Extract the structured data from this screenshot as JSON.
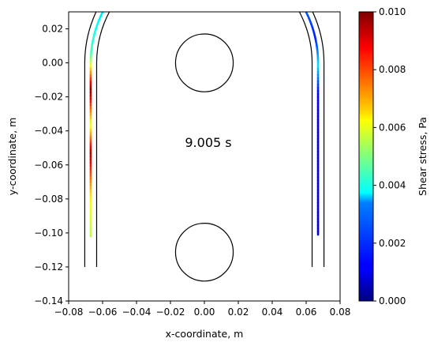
{
  "chart_data": {
    "type": "line",
    "xlabel": "x-coordinate, m",
    "ylabel": "y-coordinate, m",
    "xlim": [
      -0.08,
      0.08
    ],
    "ylim": [
      -0.14,
      0.03
    ],
    "x_ticks": [
      "−0.08",
      "−0.06",
      "−0.04",
      "−0.02",
      "0.00",
      "0.02",
      "0.04",
      "0.06",
      "0.08"
    ],
    "y_ticks": [
      "0.02",
      "0.00",
      "−0.02",
      "−0.04",
      "−0.06",
      "−0.08",
      "−0.10",
      "−0.12",
      "−0.14"
    ],
    "annotation": "9.005 s",
    "grid": false,
    "colorbar": {
      "label": "Shear stress, Pa",
      "range": [
        0.0,
        0.01
      ],
      "ticks": [
        "0.000",
        "0.002",
        "0.004",
        "0.006",
        "0.008",
        "0.010"
      ],
      "colormap": "jet"
    },
    "channel": {
      "outer_radius": 0.0705,
      "inner_radius": 0.0635,
      "straight_bottom_y": -0.12
    },
    "circles": [
      {
        "cx": 0.0,
        "cy": 0.0,
        "r": 0.017
      },
      {
        "cx": 0.0,
        "cy": -0.1113,
        "r": 0.017
      }
    ],
    "centerline": {
      "radius": 0.067,
      "left_end_y": -0.102,
      "right_end_y": -0.101,
      "stress_profile": [
        {
          "s": 0.0,
          "value": 0.0055
        },
        {
          "s": 0.06,
          "value": 0.0065
        },
        {
          "s": 0.12,
          "value": 0.0095
        },
        {
          "s": 0.16,
          "value": 0.006
        },
        {
          "s": 0.21,
          "value": 0.0099
        },
        {
          "s": 0.26,
          "value": 0.0045
        },
        {
          "s": 0.32,
          "value": 0.0035
        },
        {
          "s": 0.38,
          "value": 0.0042
        },
        {
          "s": 0.44,
          "value": 0.0055
        },
        {
          "s": 0.5,
          "value": 0.0045
        },
        {
          "s": 0.53,
          "value": 0.0075
        },
        {
          "s": 0.57,
          "value": 0.0082
        },
        {
          "s": 0.6,
          "value": 0.0093
        },
        {
          "s": 0.64,
          "value": 0.0035
        },
        {
          "s": 0.68,
          "value": 0.0022
        },
        {
          "s": 0.72,
          "value": 0.0015
        },
        {
          "s": 0.76,
          "value": 0.0035
        },
        {
          "s": 0.8,
          "value": 0.0012
        },
        {
          "s": 0.86,
          "value": 0.0008
        },
        {
          "s": 0.93,
          "value": 0.001
        },
        {
          "s": 1.0,
          "value": 0.0008
        }
      ]
    }
  }
}
